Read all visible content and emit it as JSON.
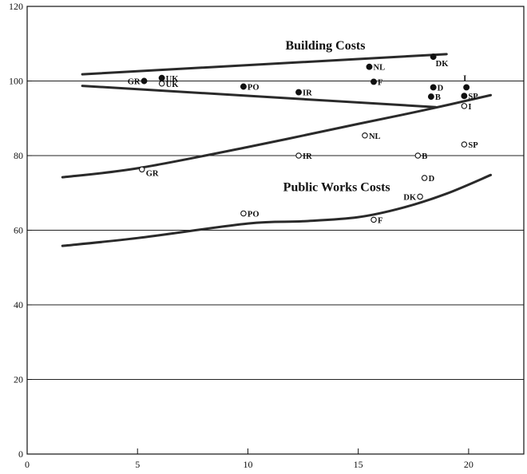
{
  "chart_data": {
    "type": "scatter",
    "xlim": [
      0,
      22.5
    ],
    "ylim": [
      0,
      120
    ],
    "x_ticks": [
      0,
      5,
      10,
      15,
      20
    ],
    "y_ticks": [
      0,
      20,
      40,
      60,
      80,
      100,
      120
    ],
    "grid": "horizontal",
    "annotations": [
      {
        "text": "Building Costs",
        "x": 11.7,
        "y": 108.5
      },
      {
        "text": "Public Works Costs",
        "x": 11.6,
        "y": 70.5
      }
    ],
    "series": [
      {
        "name": "Building Costs",
        "marker": "filled",
        "points": [
          {
            "label": "GR",
            "x": 5.3,
            "y": 100.0
          },
          {
            "label": "UK",
            "x": 6.1,
            "y": 100.8
          },
          {
            "label": "PO",
            "x": 9.8,
            "y": 98.5
          },
          {
            "label": "IR",
            "x": 12.3,
            "y": 97.0
          },
          {
            "label": "NL",
            "x": 15.5,
            "y": 103.8
          },
          {
            "label": "F",
            "x": 15.7,
            "y": 99.8
          },
          {
            "label": "DK",
            "x": 18.4,
            "y": 106.5
          },
          {
            "label": "D",
            "x": 18.4,
            "y": 98.3
          },
          {
            "label": "B",
            "x": 18.3,
            "y": 95.8
          },
          {
            "label": "I",
            "x": 19.9,
            "y": 98.3
          },
          {
            "label": "SP",
            "x": 19.8,
            "y": 96.0
          }
        ]
      },
      {
        "name": "Public Works Costs",
        "marker": "open",
        "points": [
          {
            "label": "UK",
            "x": 6.1,
            "y": 99.3
          },
          {
            "label": "I",
            "x": 19.8,
            "y": 93.3
          },
          {
            "label": "NL",
            "x": 15.3,
            "y": 85.4
          },
          {
            "label": "IR",
            "x": 12.3,
            "y": 80.0
          },
          {
            "label": "B",
            "x": 17.7,
            "y": 80.0
          },
          {
            "label": "SP",
            "x": 19.8,
            "y": 83.0
          },
          {
            "label": "GR",
            "x": 5.2,
            "y": 76.3
          },
          {
            "label": "D",
            "x": 18.0,
            "y": 74.0
          },
          {
            "label": "DK",
            "x": 17.8,
            "y": 69.0
          },
          {
            "label": "PO",
            "x": 9.8,
            "y": 64.5
          },
          {
            "label": "F",
            "x": 15.7,
            "y": 62.8
          }
        ]
      }
    ],
    "trend_lines": [
      {
        "points": [
          [
            2.5,
            101.8
          ],
          [
            19.0,
            107.2
          ]
        ]
      },
      {
        "points": [
          [
            2.5,
            98.7
          ],
          [
            18.5,
            93.0
          ]
        ]
      },
      {
        "points": [
          [
            1.6,
            74.2
          ],
          [
            5,
            76.6
          ],
          [
            10,
            82.3
          ],
          [
            15,
            88.5
          ],
          [
            18,
            92.2
          ],
          [
            21,
            96.2
          ]
        ]
      },
      {
        "points": [
          [
            1.6,
            55.8
          ],
          [
            5,
            57.9
          ],
          [
            10,
            61.8
          ],
          [
            12.5,
            62.4
          ],
          [
            15,
            63.5
          ],
          [
            17,
            66.0
          ],
          [
            19,
            69.8
          ],
          [
            21,
            74.8
          ]
        ]
      }
    ]
  }
}
